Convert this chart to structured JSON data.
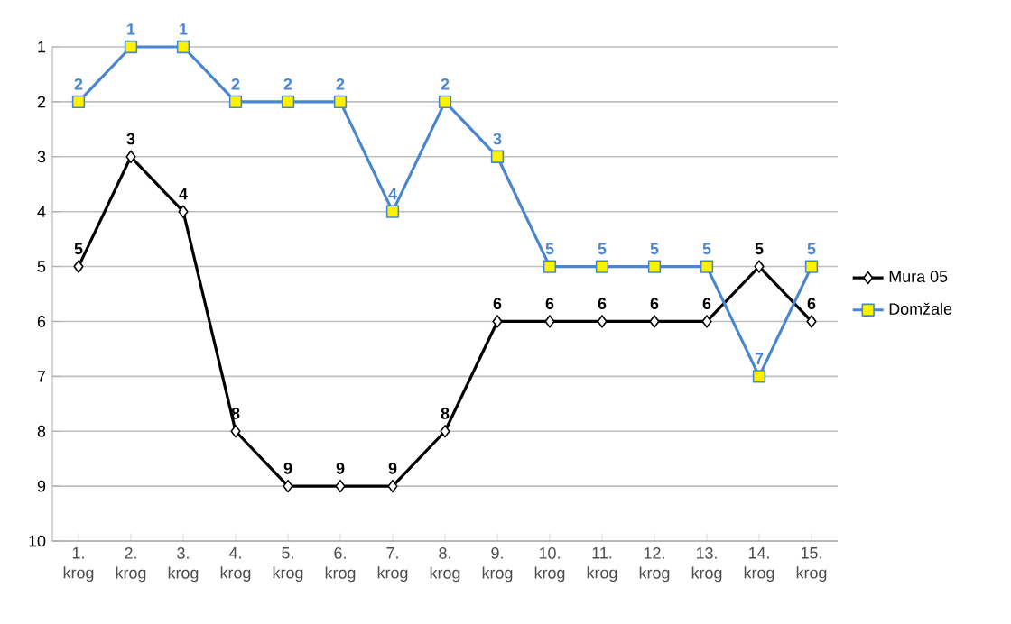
{
  "chart_data": {
    "type": "line",
    "categories": [
      "1. krog",
      "2. krog",
      "3. krog",
      "4. krog",
      "5. krog",
      "6. krog",
      "7. krog",
      "8. krog",
      "9. krog",
      "10. krog",
      "11. krog",
      "12. krog",
      "13. krog",
      "14. krog",
      "15. krog"
    ],
    "series": [
      {
        "name": "Mura 05",
        "color": "#000000",
        "marker": "diamond",
        "values": [
          5,
          3,
          4,
          8,
          9,
          9,
          9,
          8,
          6,
          6,
          6,
          6,
          6,
          5,
          6
        ]
      },
      {
        "name": "Domžale",
        "color": "#4a86cf",
        "marker": "square",
        "values": [
          2,
          1,
          1,
          2,
          2,
          2,
          4,
          2,
          3,
          5,
          5,
          5,
          5,
          7,
          5
        ]
      }
    ],
    "ylim": [
      10,
      1
    ],
    "yticks": [
      1,
      2,
      3,
      4,
      5,
      6,
      7,
      8,
      9,
      10
    ],
    "grid": "y",
    "legend": "right",
    "data_labels": true
  }
}
